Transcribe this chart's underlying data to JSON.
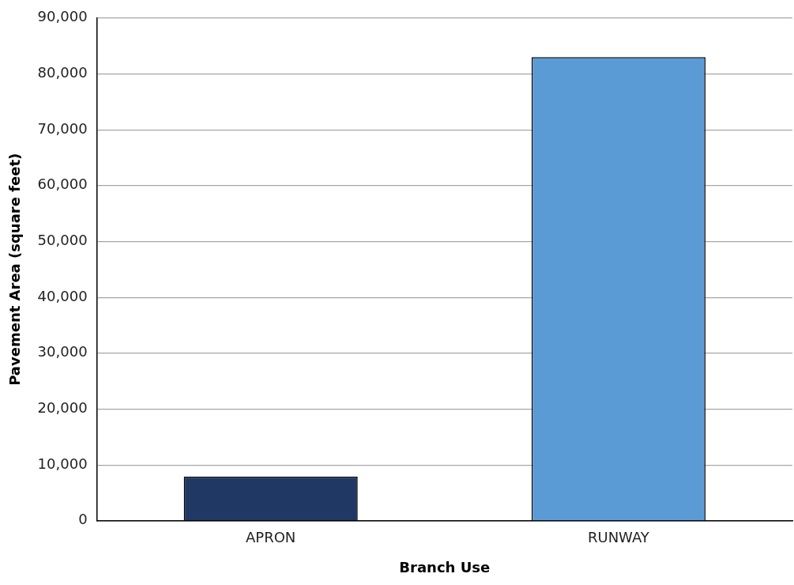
{
  "chart_data": {
    "type": "bar",
    "xlabel": "Branch Use",
    "ylabel": "Pavement Area (square feet)",
    "categories": [
      "APRON",
      "RUNWAY"
    ],
    "values": [
      7900,
      83000
    ],
    "colors": [
      "#203864",
      "#5b9bd5"
    ],
    "ylim": [
      0,
      90000
    ],
    "yticks": [
      0,
      {
        "value": 10000,
        "label": "10,000"
      },
      {
        "value": 20000,
        "label": "20,000"
      },
      {
        "value": 30000,
        "label": "30,000"
      },
      {
        "value": 40000,
        "label": "40,000"
      },
      {
        "value": 50000,
        "label": "50,000"
      },
      {
        "value": 60000,
        "label": "60,000"
      },
      {
        "value": 70000,
        "label": "70,000"
      },
      {
        "value": 80000,
        "label": "80,000"
      },
      {
        "value": 90000,
        "label": "90,000"
      }
    ],
    "grid": "y",
    "legend": false
  }
}
